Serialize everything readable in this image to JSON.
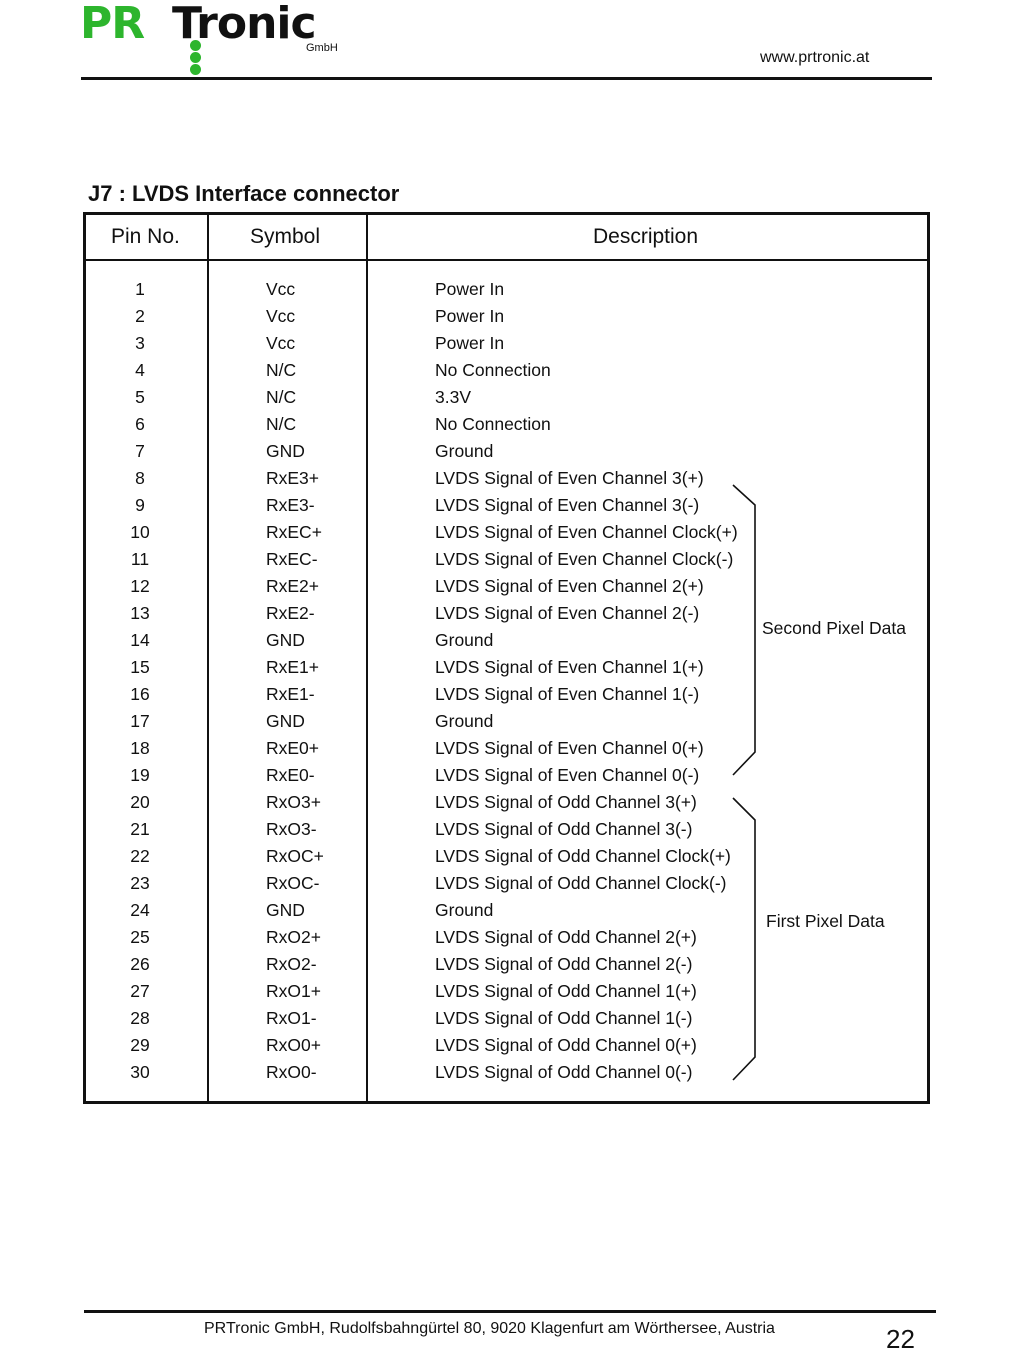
{
  "header": {
    "logo": "PRTronic GmbH",
    "url": "www.prtronic.at"
  },
  "section_title": "J7 : LVDS Interface connector",
  "table": {
    "columns": [
      "Pin No.",
      "Symbol",
      "Description"
    ],
    "rows": [
      [
        "1",
        "Vcc",
        "Power In"
      ],
      [
        "2",
        "Vcc",
        "Power In"
      ],
      [
        "3",
        "Vcc",
        "Power In"
      ],
      [
        "4",
        "N/C",
        "No Connection"
      ],
      [
        "5",
        "N/C",
        "3.3V"
      ],
      [
        "6",
        "N/C",
        "No Connection"
      ],
      [
        "7",
        "GND",
        "Ground"
      ],
      [
        "8",
        "RxE3+",
        "LVDS Signal of Even Channel 3(+)"
      ],
      [
        "9",
        "RxE3-",
        "LVDS Signal of Even Channel 3(-)"
      ],
      [
        "10",
        "RxEC+",
        "LVDS Signal of Even Channel Clock(+)"
      ],
      [
        "11",
        "RxEC-",
        "LVDS Signal of Even Channel Clock(-)"
      ],
      [
        "12",
        "RxE2+",
        "LVDS Signal of Even Channel 2(+)"
      ],
      [
        "13",
        "RxE2-",
        "LVDS Signal of Even Channel 2(-)"
      ],
      [
        "14",
        "GND",
        "Ground"
      ],
      [
        "15",
        "RxE1+",
        "LVDS Signal of Even Channel 1(+)"
      ],
      [
        "16",
        "RxE1-",
        "LVDS Signal of Even Channel 1(-)"
      ],
      [
        "17",
        "GND",
        "Ground"
      ],
      [
        "18",
        "RxE0+",
        "LVDS Signal of Even Channel 0(+)"
      ],
      [
        "19",
        "RxE0-",
        "LVDS Signal of Even Channel 0(-)"
      ],
      [
        "20",
        "RxO3+",
        "LVDS Signal of Odd Channel 3(+)"
      ],
      [
        "21",
        "RxO3-",
        "LVDS Signal of Odd Channel 3(-)"
      ],
      [
        "22",
        "RxOC+",
        "LVDS Signal of Odd Channel Clock(+)"
      ],
      [
        "23",
        "RxOC-",
        "LVDS Signal of Odd Channel Clock(-)"
      ],
      [
        "24",
        "GND",
        "Ground"
      ],
      [
        "25",
        "RxO2+",
        "LVDS Signal of Odd Channel 2(+)"
      ],
      [
        "26",
        "RxO2-",
        "LVDS Signal of Odd Channel 2(-)"
      ],
      [
        "27",
        "RxO1+",
        "LVDS Signal of Odd Channel 1(+)"
      ],
      [
        "28",
        "RxO1-",
        "LVDS Signal of Odd Channel 1(-)"
      ],
      [
        "29",
        "RxO0+",
        "LVDS Signal of Odd Channel 0(+)"
      ],
      [
        "30",
        "RxO0-",
        "LVDS Signal of Odd Channel 0(-)"
      ]
    ],
    "groups": [
      "Second Pixel Data",
      "First Pixel Data"
    ]
  },
  "footer": {
    "address": "PRTronic GmbH, Rudolfsbahngürtel 80, 9020 Klagenfurt am Wörthersee, Austria",
    "page": "22"
  },
  "colors": {
    "logo_green": "#2db52d",
    "logo_black": "#111111"
  }
}
